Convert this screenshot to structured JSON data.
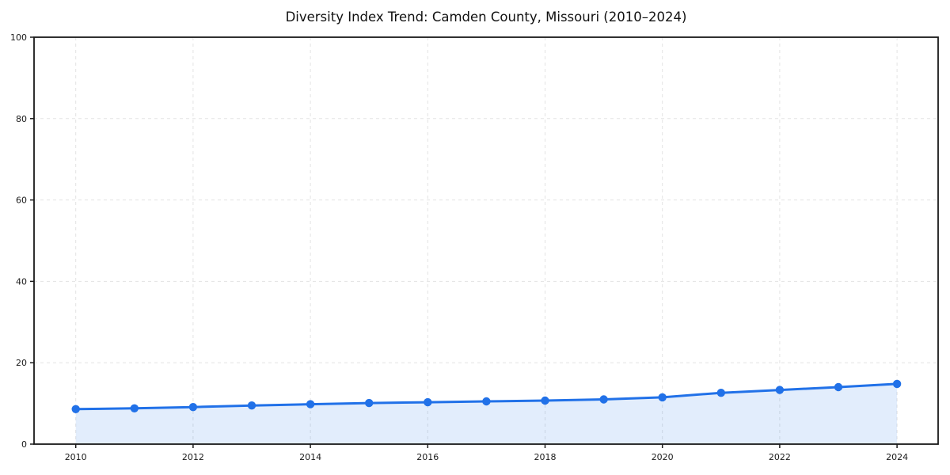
{
  "chart_data": {
    "type": "line",
    "title": "Diversity Index Trend: Camden County, Missouri (2010–2024)",
    "xlabel": "",
    "ylabel": "",
    "x": [
      2010,
      2011,
      2012,
      2013,
      2014,
      2015,
      2016,
      2017,
      2018,
      2019,
      2020,
      2021,
      2022,
      2023,
      2024
    ],
    "series": [
      {
        "name": "Diversity Index",
        "values": [
          8.6,
          8.8,
          9.1,
          9.5,
          9.8,
          10.1,
          10.3,
          10.5,
          10.7,
          11.0,
          11.5,
          12.6,
          13.3,
          14.0,
          14.8
        ]
      }
    ],
    "ylim": [
      0,
      100
    ],
    "yticks": [
      0,
      20,
      40,
      60,
      80,
      100
    ],
    "xticks": [
      2010,
      2012,
      2014,
      2016,
      2018,
      2020,
      2022,
      2024
    ],
    "grid": true,
    "grid_style": "dashed",
    "legend": "none",
    "marker": "circle",
    "area_fill": true,
    "colors": {
      "line": "#2171e8",
      "marker": "#2171e8",
      "area": "#2171e8",
      "area_opacity": 0.13,
      "grid": "#e3e3e3",
      "axis": "#1a1a1a",
      "tick_text": "#1a1a1a",
      "title_text": "#111111",
      "background": "#ffffff"
    }
  }
}
